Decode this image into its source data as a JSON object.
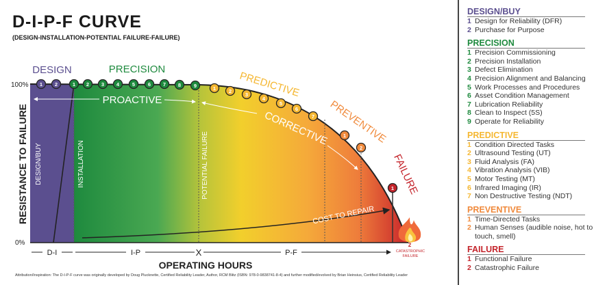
{
  "title": "D-I-P-F  CURVE",
  "subtitle": "(DESIGN-INSTALLATION-POTENTIAL FAILURE-FAILURE)",
  "colors": {
    "design": "#5b4f8f",
    "precision": "#1e8a3e",
    "predictive": "#f5b731",
    "preventive": "#f08a3c",
    "failure": "#c4242b"
  },
  "diagram": {
    "y_axis_label": "RESISTANCE TO FAILURE",
    "y_top": "100%",
    "y_bottom": "0%",
    "x_axis_label": "OPERATING HOURS",
    "zone_labels": {
      "design": "DESIGN",
      "precision": "PRECISION",
      "predictive": "PREDICTIVE",
      "preventive": "PREVENTIVE",
      "failure": "FAILURE"
    },
    "vertical_labels": {
      "design_buy": "DESIGN/BUY",
      "installation": "INSTALLATION",
      "potential_failure": "POTENTIAL FAILURE"
    },
    "proactive": "PROACTIVE",
    "corrective": "CORRECTIVE",
    "cost_to_repair": "COST TO REPAIR",
    "intervals": {
      "di": "D-I",
      "ip": "I-P",
      "pf": "P-F",
      "marker": "X"
    },
    "catastrophic": {
      "number": "2",
      "label_line1": "CATASTROPHIC",
      "label_line2": "FAILURE"
    },
    "markers": {
      "design": [
        "1",
        "2"
      ],
      "precision": [
        "1",
        "2",
        "3",
        "4",
        "5",
        "6",
        "7",
        "8",
        "9"
      ],
      "predictive": [
        "1",
        "2",
        "3",
        "4",
        "5",
        "6",
        "7"
      ],
      "preventive": [
        "1",
        "2"
      ],
      "failure": [
        "1"
      ]
    }
  },
  "legend": [
    {
      "heading": "DESIGN/BUY",
      "color": "#5b4f8f",
      "items": [
        "Design for Reliability (DFR)",
        "Purchase for Purpose"
      ]
    },
    {
      "heading": "PRECISION",
      "color": "#1e8a3e",
      "items": [
        "Precision Commissioning",
        "Precision Installation",
        "Defect Elimination",
        "Precision Alignment and Balancing",
        "Work Processes and Procedures",
        "Asset Condition Management",
        "Lubrication Reliability",
        "Clean to Inspect (5S)",
        "Operate for Reliability"
      ]
    },
    {
      "heading": "PREDICTIVE",
      "color": "#f5b731",
      "items": [
        "Condition Directed Tasks",
        "Ultrasound Testing (UT)",
        "Fluid Analysis (FA)",
        "Vibration Analysis (VIB)",
        "Motor Testing (MT)",
        "Infrared Imaging (IR)",
        "Non Destructive Testing (NDT)"
      ]
    },
    {
      "heading": "PREVENTIVE",
      "color": "#f08a3c",
      "items": [
        "Time-Directed Tasks",
        "Human Senses (audible noise, hot to touch, smell)"
      ]
    },
    {
      "heading": "FAILURE",
      "color": "#c4242b",
      "items": [
        "Functional Failure",
        "Catastrophic Failure"
      ]
    }
  ],
  "attribution": "Attribution/Inspiration: The D-I-P-F curve was originally developed by Doug Plucknette, Certified Reliability Leader, Author, RCM Blitz (ISBN: 978-0-9838741-8-4) and further modified/evolved by Brian Heinsius, Certified Reliability Leader"
}
